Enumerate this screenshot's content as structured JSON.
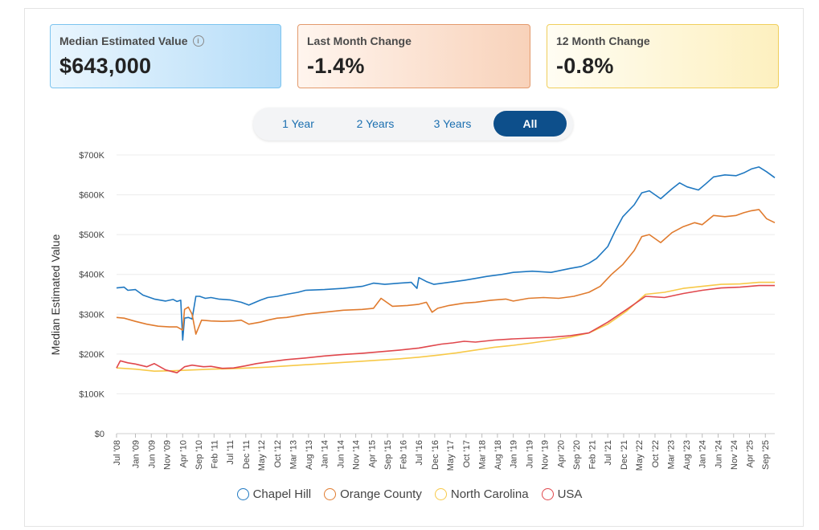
{
  "cards": [
    {
      "title": "Median Estimated Value",
      "value": "$643,000",
      "has_info": true
    },
    {
      "title": "Last Month Change",
      "value": "-1.4%",
      "has_info": false
    },
    {
      "title": "12 Month Change",
      "value": "-0.8%",
      "has_info": false
    }
  ],
  "tabs": [
    {
      "label": "1 Year",
      "active": false
    },
    {
      "label": "2 Years",
      "active": false
    },
    {
      "label": "3 Years",
      "active": false
    },
    {
      "label": "All",
      "active": true
    }
  ],
  "chart_data": {
    "type": "line",
    "ylabel": "Median Estimated Value",
    "ylim": [
      0,
      700000
    ],
    "yticks": [
      0,
      100000,
      200000,
      300000,
      400000,
      500000,
      600000,
      700000
    ],
    "ytick_labels": [
      "$0",
      "$100K",
      "$200K",
      "$300K",
      "$400K",
      "$500K",
      "$600K",
      "$700K"
    ],
    "xlim": [
      2008.5,
      2025.92
    ],
    "xticks": [
      2008.5,
      2009.0,
      2009.42,
      2009.83,
      2010.25,
      2010.67,
      2011.08,
      2011.5,
      2011.92,
      2012.33,
      2012.75,
      2013.17,
      2013.58,
      2014.0,
      2014.42,
      2014.83,
      2015.25,
      2015.67,
      2016.08,
      2016.5,
      2016.92,
      2017.33,
      2017.75,
      2018.17,
      2018.58,
      2019.0,
      2019.42,
      2019.83,
      2020.25,
      2020.67,
      2021.08,
      2021.5,
      2021.92,
      2022.33,
      2022.75,
      2023.17,
      2023.58,
      2024.0,
      2024.42,
      2024.83,
      2025.25,
      2025.67
    ],
    "xtick_labels": [
      "Jul '08",
      "Jan '09",
      "Jun '09",
      "Nov '09",
      "Apr '10",
      "Sep '10",
      "Feb '11",
      "Jul '11",
      "Dec '11",
      "May '12",
      "Oct '12",
      "Mar '13",
      "Aug '13",
      "Jan '14",
      "Jun '14",
      "Nov '14",
      "Apr '15",
      "Sep '15",
      "Feb '16",
      "Jul '16",
      "Dec '16",
      "May '17",
      "Oct '17",
      "Mar '18",
      "Aug '18",
      "Jan '19",
      "Jun '19",
      "Nov '19",
      "Apr '20",
      "Sep '20",
      "Feb '21",
      "Jul '21",
      "Dec '21",
      "May '22",
      "Oct '22",
      "Mar '23",
      "Aug '23",
      "Jan '24",
      "Jun '24",
      "Nov '24",
      "Apr '25",
      "Sep '25"
    ],
    "series": [
      {
        "name": "Chapel Hill",
        "color": "#1f78c1",
        "x": [
          2008.5,
          2008.7,
          2008.8,
          2009.0,
          2009.2,
          2009.5,
          2009.8,
          2010.0,
          2010.1,
          2010.2,
          2010.25,
          2010.3,
          2010.4,
          2010.5,
          2010.6,
          2010.7,
          2010.85,
          2011.0,
          2011.2,
          2011.5,
          2011.8,
          2012.0,
          2012.3,
          2012.5,
          2012.75,
          2013.0,
          2013.3,
          2013.5,
          2014.0,
          2014.5,
          2015.0,
          2015.3,
          2015.6,
          2016.0,
          2016.3,
          2016.45,
          2016.5,
          2016.7,
          2016.9,
          2017.3,
          2017.7,
          2018.0,
          2018.3,
          2018.7,
          2019.0,
          2019.5,
          2020.0,
          2020.5,
          2020.8,
          2021.0,
          2021.2,
          2021.5,
          2021.7,
          2021.9,
          2022.2,
          2022.4,
          2022.6,
          2022.9,
          2023.2,
          2023.4,
          2023.6,
          2023.9,
          2024.1,
          2024.3,
          2024.6,
          2024.9,
          2025.1,
          2025.3,
          2025.5,
          2025.7,
          2025.92
        ],
        "y": [
          366000,
          368000,
          360000,
          362000,
          348000,
          338000,
          333000,
          337000,
          332000,
          335000,
          235000,
          290000,
          292000,
          288000,
          345000,
          345000,
          340000,
          342000,
          338000,
          336000,
          330000,
          323000,
          335000,
          342000,
          345000,
          350000,
          355000,
          360000,
          362000,
          365000,
          370000,
          378000,
          375000,
          378000,
          380000,
          365000,
          392000,
          382000,
          375000,
          380000,
          385000,
          390000,
          395000,
          400000,
          405000,
          408000,
          405000,
          415000,
          420000,
          428000,
          440000,
          470000,
          510000,
          545000,
          575000,
          605000,
          610000,
          590000,
          615000,
          630000,
          620000,
          612000,
          628000,
          645000,
          650000,
          648000,
          655000,
          665000,
          670000,
          658000,
          643000
        ]
      },
      {
        "name": "Orange County",
        "color": "#e07b2e",
        "x": [
          2008.5,
          2008.7,
          2009.0,
          2009.3,
          2009.6,
          2009.9,
          2010.1,
          2010.25,
          2010.3,
          2010.4,
          2010.5,
          2010.6,
          2010.75,
          2011.0,
          2011.3,
          2011.6,
          2011.8,
          2012.0,
          2012.3,
          2012.5,
          2012.75,
          2013.0,
          2013.5,
          2014.0,
          2014.5,
          2015.0,
          2015.3,
          2015.5,
          2015.8,
          2016.2,
          2016.5,
          2016.7,
          2016.85,
          2017.0,
          2017.3,
          2017.7,
          2018.0,
          2018.4,
          2018.8,
          2019.0,
          2019.4,
          2019.8,
          2020.2,
          2020.6,
          2021.0,
          2021.3,
          2021.6,
          2021.9,
          2022.2,
          2022.4,
          2022.6,
          2022.9,
          2023.2,
          2023.5,
          2023.8,
          2024.0,
          2024.3,
          2024.6,
          2024.9,
          2025.1,
          2025.3,
          2025.5,
          2025.7,
          2025.92
        ],
        "y": [
          292000,
          290000,
          282000,
          275000,
          270000,
          268000,
          268000,
          260000,
          312000,
          318000,
          300000,
          250000,
          285000,
          283000,
          282000,
          283000,
          285000,
          275000,
          280000,
          285000,
          290000,
          292000,
          300000,
          305000,
          310000,
          312000,
          315000,
          340000,
          320000,
          322000,
          325000,
          330000,
          305000,
          315000,
          322000,
          328000,
          330000,
          335000,
          338000,
          333000,
          340000,
          342000,
          340000,
          345000,
          355000,
          370000,
          400000,
          425000,
          460000,
          495000,
          500000,
          480000,
          505000,
          520000,
          530000,
          525000,
          548000,
          545000,
          548000,
          555000,
          560000,
          563000,
          540000,
          530000
        ]
      },
      {
        "name": "North Carolina",
        "color": "#f7c948",
        "x": [
          2008.5,
          2009.0,
          2009.5,
          2010.0,
          2010.5,
          2011.0,
          2011.5,
          2012.0,
          2012.5,
          2013.0,
          2013.5,
          2014.0,
          2014.5,
          2015.0,
          2015.5,
          2016.0,
          2016.5,
          2017.0,
          2017.5,
          2018.0,
          2018.5,
          2019.0,
          2019.5,
          2020.0,
          2020.5,
          2021.0,
          2021.5,
          2022.0,
          2022.5,
          2023.0,
          2023.5,
          2024.0,
          2024.5,
          2025.0,
          2025.5,
          2025.92
        ],
        "y": [
          165000,
          162000,
          157000,
          158000,
          160000,
          162000,
          163000,
          165000,
          167000,
          170000,
          173000,
          176000,
          179000,
          182000,
          185000,
          188000,
          192000,
          197000,
          203000,
          210000,
          217000,
          222000,
          228000,
          235000,
          242000,
          253000,
          275000,
          308000,
          350000,
          355000,
          365000,
          370000,
          375000,
          376000,
          380000,
          380000
        ]
      },
      {
        "name": "USA",
        "color": "#e0474c",
        "x": [
          2008.5,
          2008.6,
          2008.8,
          2009.0,
          2009.3,
          2009.5,
          2009.8,
          2010.1,
          2010.3,
          2010.5,
          2010.8,
          2011.0,
          2011.3,
          2011.6,
          2011.9,
          2012.2,
          2012.5,
          2013.0,
          2013.5,
          2014.0,
          2014.5,
          2015.0,
          2015.5,
          2016.0,
          2016.5,
          2016.8,
          2017.1,
          2017.4,
          2017.7,
          2018.0,
          2018.5,
          2019.0,
          2019.5,
          2020.0,
          2020.5,
          2021.0,
          2021.5,
          2022.0,
          2022.5,
          2023.0,
          2023.5,
          2024.0,
          2024.5,
          2025.0,
          2025.5,
          2025.92
        ],
        "y": [
          165000,
          183000,
          178000,
          175000,
          168000,
          176000,
          160000,
          153000,
          168000,
          172000,
          168000,
          169000,
          164000,
          165000,
          170000,
          176000,
          180000,
          186000,
          190000,
          195000,
          199000,
          202000,
          206000,
          210000,
          215000,
          220000,
          225000,
          228000,
          232000,
          230000,
          235000,
          238000,
          240000,
          242000,
          246000,
          253000,
          280000,
          312000,
          345000,
          342000,
          352000,
          360000,
          366000,
          368000,
          372000,
          372000
        ]
      }
    ]
  }
}
